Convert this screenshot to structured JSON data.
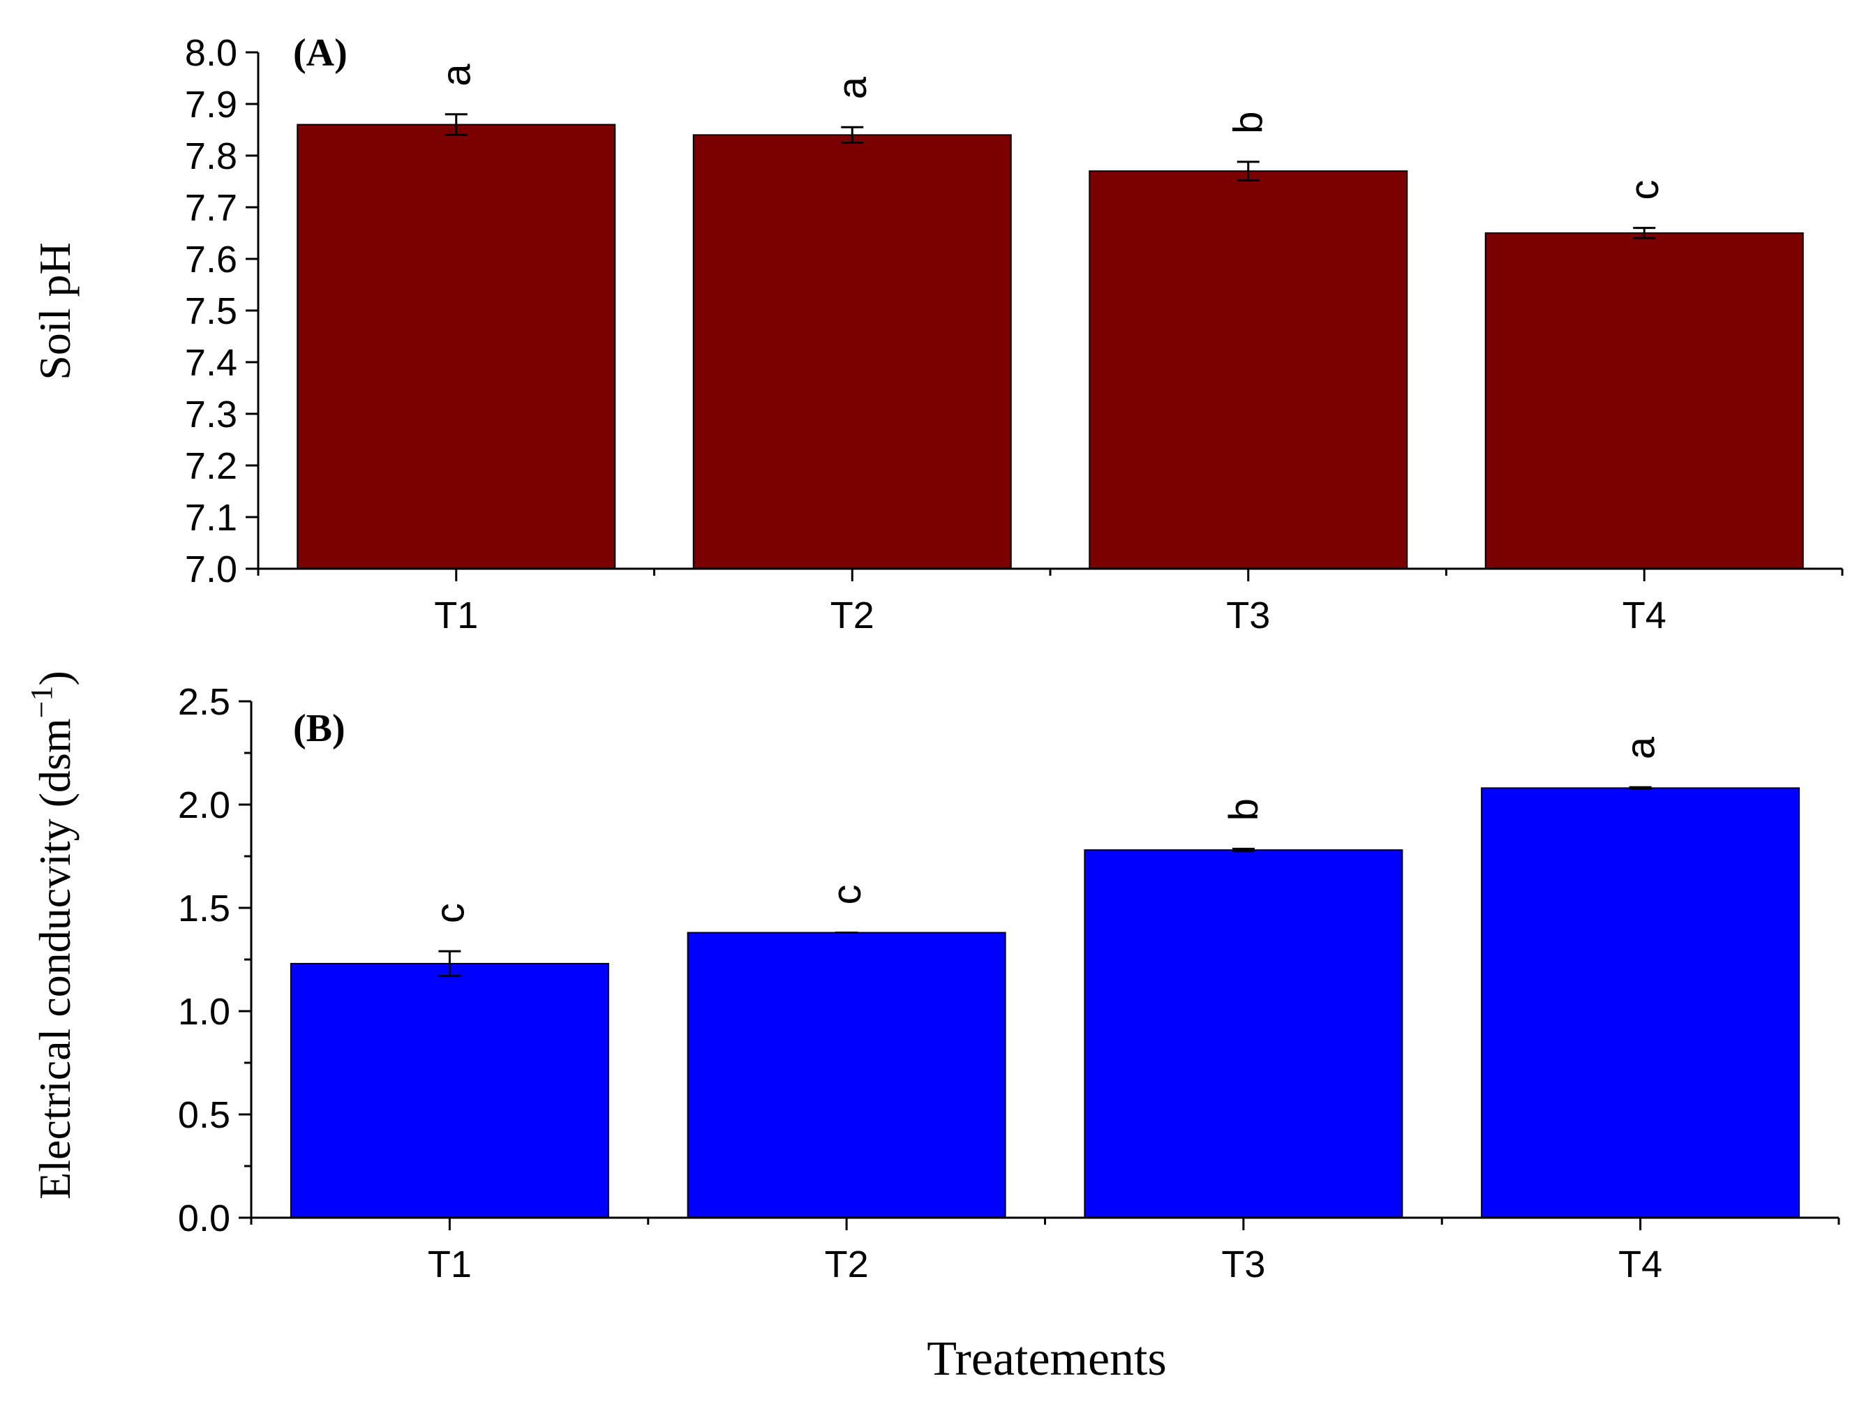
{
  "chart_data": [
    {
      "type": "bar",
      "panel": "(A)",
      "title": "",
      "xlabel": "",
      "ylabel": "Soil pH",
      "categories": [
        "T1",
        "T2",
        "T3",
        "T4"
      ],
      "values": [
        7.86,
        7.84,
        7.77,
        7.65
      ],
      "errors": [
        0.02,
        0.015,
        0.018,
        0.01
      ],
      "significance": [
        "a",
        "a",
        "b",
        "c"
      ],
      "ylim": [
        7.0,
        8.0
      ],
      "yticks": [
        "7.0",
        "7.1",
        "7.2",
        "7.3",
        "7.4",
        "7.5",
        "7.6",
        "7.7",
        "7.8",
        "7.9",
        "8.0"
      ],
      "color": "#7b0000"
    },
    {
      "type": "bar",
      "panel": "(B)",
      "title": "",
      "xlabel": "Treatements",
      "ylabel": "Electrical conducvity (dsm",
      "ylabel_superscript": "−1",
      "ylabel_close": ")",
      "categories": [
        "T1",
        "T2",
        "T3",
        "T4"
      ],
      "values": [
        1.23,
        1.38,
        1.78,
        2.08
      ],
      "errors": [
        0.06,
        0.0,
        0.006,
        0.004
      ],
      "significance": [
        "c",
        "c",
        "b",
        "a"
      ],
      "ylim": [
        0.0,
        2.5
      ],
      "yticks": [
        "0.0",
        "0.5",
        "1.0",
        "1.5",
        "2.0",
        "2.5"
      ],
      "color": "#0000ff"
    }
  ]
}
